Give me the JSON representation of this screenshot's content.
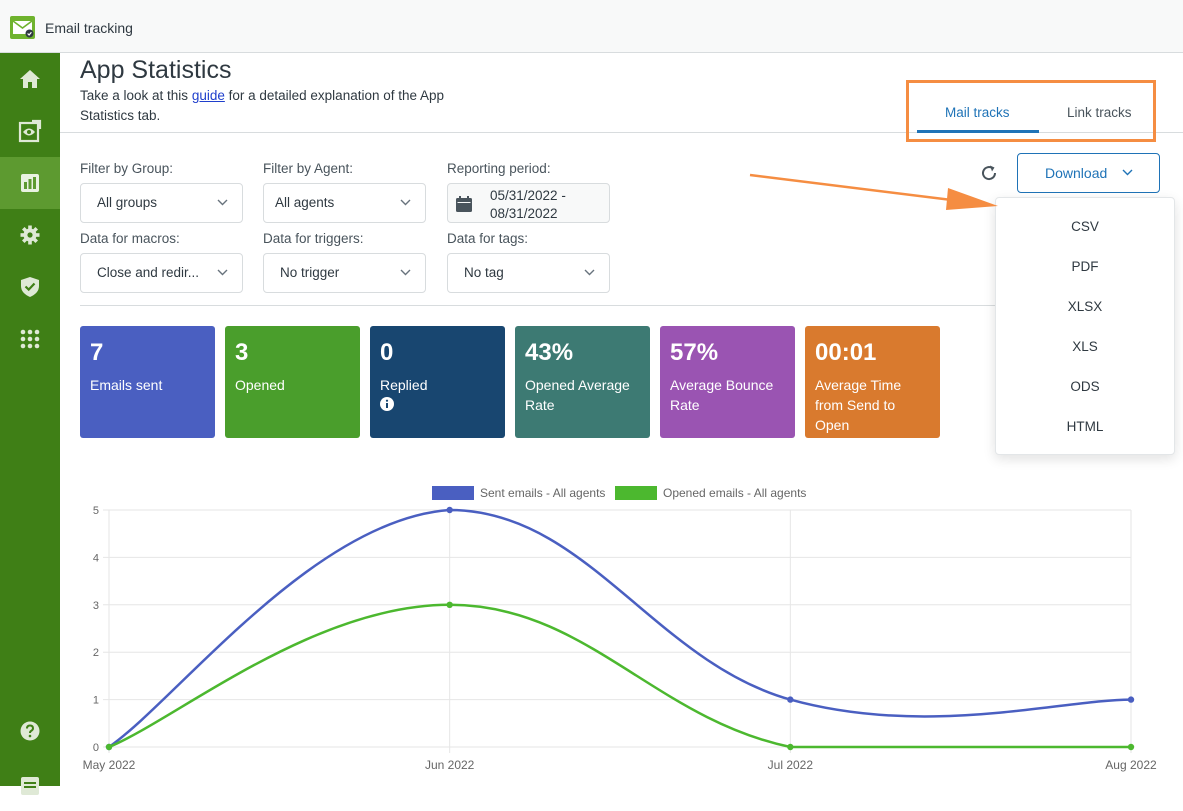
{
  "app": {
    "title": "Email tracking",
    "logo_icon": "envelope-check-icon",
    "brand_color": "#3f7f16"
  },
  "sidebar": {
    "items": [
      {
        "name": "home",
        "icon": "home-icon",
        "active": false
      },
      {
        "name": "tracking",
        "icon": "eye-icon",
        "active": false
      },
      {
        "name": "statistics",
        "icon": "bar-chart-icon",
        "active": true
      },
      {
        "name": "settings",
        "icon": "gear-icon",
        "active": false
      },
      {
        "name": "security",
        "icon": "shield-check-icon",
        "active": false
      },
      {
        "name": "apps",
        "icon": "grid-icon",
        "active": false
      },
      {
        "name": "help",
        "icon": "question-icon",
        "active": false
      },
      {
        "name": "docs",
        "icon": "document-icon",
        "active": false
      }
    ]
  },
  "header": {
    "title": "App Statistics",
    "desc_prefix": "Take a look at this ",
    "desc_link": "guide",
    "desc_suffix": " for a detailed explanation of the App Statistics tab."
  },
  "tabs": [
    {
      "label": "Mail tracks",
      "active": true
    },
    {
      "label": "Link tracks",
      "active": false
    }
  ],
  "filters": {
    "group": {
      "label": "Filter by Group:",
      "value": "All groups"
    },
    "agent": {
      "label": "Filter by Agent:",
      "value": "All agents"
    },
    "period": {
      "label": "Reporting period:",
      "start": "05/31/2022 -",
      "end": "08/31/2022"
    },
    "macros": {
      "label": "Data for macros:",
      "value": "Close and redir..."
    },
    "triggers": {
      "label": "Data for triggers:",
      "value": "No trigger"
    },
    "tags": {
      "label": "Data for tags:",
      "value": "No tag"
    }
  },
  "actions": {
    "refresh_icon": "refresh-icon",
    "download_label": "Download",
    "download_options": [
      "CSV",
      "PDF",
      "XLSX",
      "XLS",
      "ODS",
      "HTML"
    ]
  },
  "cards": [
    {
      "value": "7",
      "label": "Emails sent",
      "color": "#4a5fc1",
      "info": false
    },
    {
      "value": "3",
      "label": "Opened",
      "color": "#4a9e2c",
      "info": false
    },
    {
      "value": "0",
      "label": "Replied",
      "color": "#184670",
      "info": true
    },
    {
      "value": "43%",
      "label": "Opened Average Rate",
      "color": "#3d7a73",
      "info": false
    },
    {
      "value": "57%",
      "label": "Average Bounce Rate",
      "color": "#9a54b2",
      "info": false
    },
    {
      "value": "00:01",
      "label": "Average Time from Send to Open",
      "color": "#d97a2e",
      "info": false
    }
  ],
  "chart_data": {
    "type": "line",
    "categories": [
      "May 2022",
      "Jun 2022",
      "Jul 2022",
      "Aug 2022"
    ],
    "series": [
      {
        "name": "Sent emails - All agents",
        "values": [
          0,
          5,
          1,
          1
        ],
        "color": "#4a5fc1"
      },
      {
        "name": "Opened emails - All agents",
        "values": [
          0,
          3,
          0,
          0
        ],
        "color": "#4cb82f"
      }
    ],
    "ylim": [
      0,
      5
    ],
    "yticks": [
      "0",
      "1",
      "2",
      "3",
      "4",
      "5"
    ],
    "grid": true,
    "legend": "top-center"
  },
  "annotation": {
    "highlight_color": "#f58d42"
  }
}
